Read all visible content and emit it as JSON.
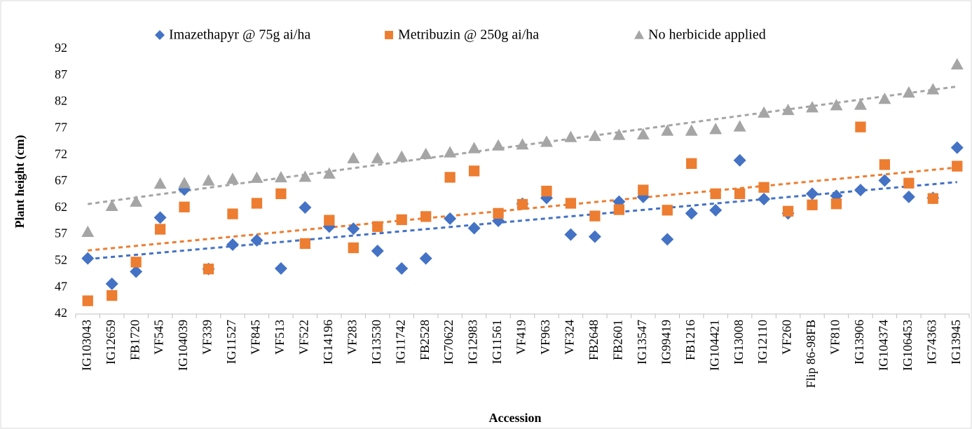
{
  "chart_data": {
    "type": "scatter",
    "x_label": "Accession",
    "y_label": "Plant height (cm)",
    "categories": [
      "IG103043",
      "IG12659",
      "FB1720",
      "VF545",
      "IG104039",
      "VF339",
      "IG11527",
      "VF845",
      "VF513",
      "VF522",
      "IG14196",
      "VF283",
      "IG13530",
      "IG11742",
      "FB2528",
      "IG70622",
      "IG12983",
      "IG11561",
      "VF419",
      "VF963",
      "VF324",
      "FB2648",
      "FB2601",
      "IG13547",
      "IG99419",
      "FB1216",
      "IG104421",
      "IG13008",
      "IG12110",
      "VF260",
      "Flip 86-98FB",
      "VF810",
      "IG13906",
      "IG104374",
      "IG106453",
      "IG74363",
      "IG13945"
    ],
    "series": [
      {
        "name": "Imazethapyr @ 75g ai/ha",
        "color": "#4472c4",
        "marker": "diamond",
        "values": [
          52.5,
          47.7,
          50,
          60.2,
          65.5,
          50.5,
          55.1,
          55.9,
          50.6,
          62.1,
          58.5,
          58.1,
          53.9,
          50.6,
          52.5,
          60,
          58.2,
          59.6,
          62.8,
          63.9,
          57,
          56.6,
          63.2,
          64.1,
          56.1,
          61,
          61.6,
          71,
          63.7,
          61,
          64.7,
          64.3,
          65.4,
          67.2,
          64.1,
          63.9,
          73.4
        ]
      },
      {
        "name": "Metribuzin @ 250g ai/ha",
        "color": "#ed7d31",
        "marker": "square",
        "values": [
          44.5,
          45.5,
          51.8,
          58,
          62.2,
          50.5,
          60.9,
          62.9,
          64.7,
          55.3,
          59.7,
          54.5,
          58.5,
          59.8,
          60.4,
          67.8,
          69,
          61,
          62.7,
          65.2,
          62.9,
          60.5,
          61.7,
          65.4,
          61.6,
          70.4,
          64.7,
          64.7,
          65.9,
          61.4,
          62.6,
          62.8,
          77.3,
          70.2,
          66.7,
          63.8,
          69.9
        ]
      },
      {
        "name": "No herbicide applied",
        "color": "#a5a5a5",
        "marker": "triangle",
        "values": [
          57.5,
          62.4,
          63.2,
          66.6,
          66.7,
          67.2,
          67.5,
          67.7,
          67.8,
          67.9,
          68.5,
          71.4,
          71.4,
          71.7,
          72.2,
          72.5,
          73.3,
          73.8,
          74,
          74.5,
          75.4,
          75.6,
          75.8,
          75.9,
          76.6,
          76.6,
          76.9,
          77.4,
          80,
          80.5,
          81,
          81.4,
          81.5,
          82.6,
          83.8,
          84.4,
          89.1
        ]
      }
    ],
    "trendline": "linear",
    "ylim": [
      42,
      92
    ],
    "yticks": [
      42,
      47,
      52,
      57,
      62,
      67,
      72,
      77,
      82,
      87,
      92
    ],
    "legend": "top",
    "grid": false
  }
}
